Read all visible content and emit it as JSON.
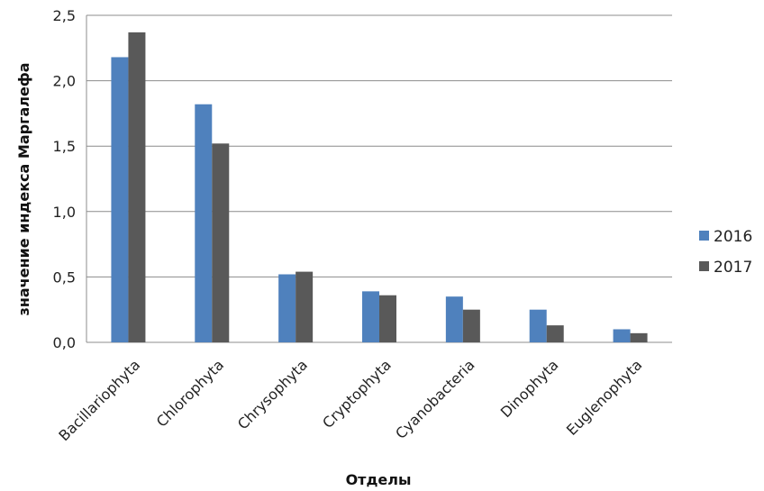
{
  "chart_data": {
    "type": "bar",
    "title": "",
    "xlabel": "Отделы",
    "ylabel": "значение индекса Маргалефа",
    "categories": [
      "Bacillariophyta",
      "Chlorophyta",
      "Chrysophyta",
      "Cryptophyta",
      "Cyanobacteria",
      "Dinophyta",
      "Euglenophyta"
    ],
    "series": [
      {
        "name": "2016",
        "color": "#4f81bd",
        "values": [
          2.18,
          1.82,
          0.52,
          0.39,
          0.35,
          0.25,
          0.1
        ]
      },
      {
        "name": "2017",
        "color": "#595959",
        "values": [
          2.37,
          1.52,
          0.54,
          0.36,
          0.25,
          0.13,
          0.07
        ]
      }
    ],
    "ylim": [
      0,
      2.5
    ],
    "yticks": [
      "0,0",
      "0,5",
      "1,0",
      "1,5",
      "2,0",
      "2,5"
    ],
    "grid": true,
    "legend": "right"
  }
}
